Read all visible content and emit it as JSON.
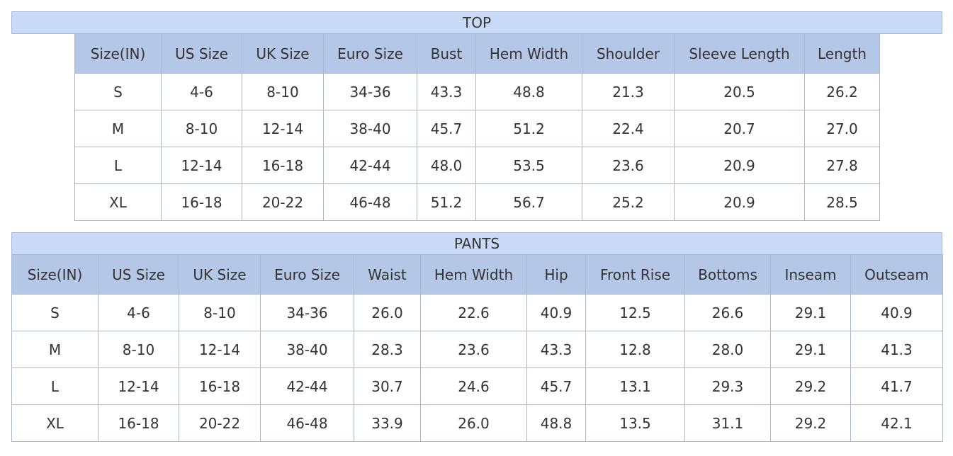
{
  "top": {
    "title": "TOP",
    "header": [
      "Size(IN)",
      "US Size",
      "UK Size",
      "Euro Size",
      "Bust",
      "Hem Width",
      "Shoulder",
      "Sleeve Length",
      "Length"
    ],
    "rows": [
      [
        "S",
        "4-6",
        "8-10",
        "34-36",
        "43.3",
        "48.8",
        "21.3",
        "20.5",
        "26.2"
      ],
      [
        "M",
        "8-10",
        "12-14",
        "38-40",
        "45.7",
        "51.2",
        "22.4",
        "20.7",
        "27.0"
      ],
      [
        "L",
        "12-14",
        "16-18",
        "42-44",
        "48.0",
        "53.5",
        "23.6",
        "20.9",
        "27.8"
      ],
      [
        "XL",
        "16-18",
        "20-22",
        "46-48",
        "51.2",
        "56.7",
        "25.2",
        "20.9",
        "28.5"
      ]
    ]
  },
  "pants": {
    "title": "PANTS",
    "header": [
      "Size(IN)",
      "US Size",
      "UK Size",
      "Euro Size",
      "Waist",
      "Hem Width",
      "Hip",
      "Front Rise",
      "Bottoms",
      "Inseam",
      "Outseam"
    ],
    "rows": [
      [
        "S",
        "4-6",
        "8-10",
        "34-36",
        "26.0",
        "22.6",
        "40.9",
        "12.5",
        "26.6",
        "29.1",
        "40.9"
      ],
      [
        "M",
        "8-10",
        "12-14",
        "38-40",
        "28.3",
        "23.6",
        "43.3",
        "12.8",
        "28.0",
        "29.1",
        "41.3"
      ],
      [
        "L",
        "12-14",
        "16-18",
        "42-44",
        "30.7",
        "24.6",
        "45.7",
        "13.1",
        "29.3",
        "29.2",
        "41.7"
      ],
      [
        "XL",
        "16-18",
        "20-22",
        "46-48",
        "33.9",
        "26.0",
        "48.8",
        "13.5",
        "31.1",
        "29.2",
        "42.1"
      ]
    ]
  }
}
